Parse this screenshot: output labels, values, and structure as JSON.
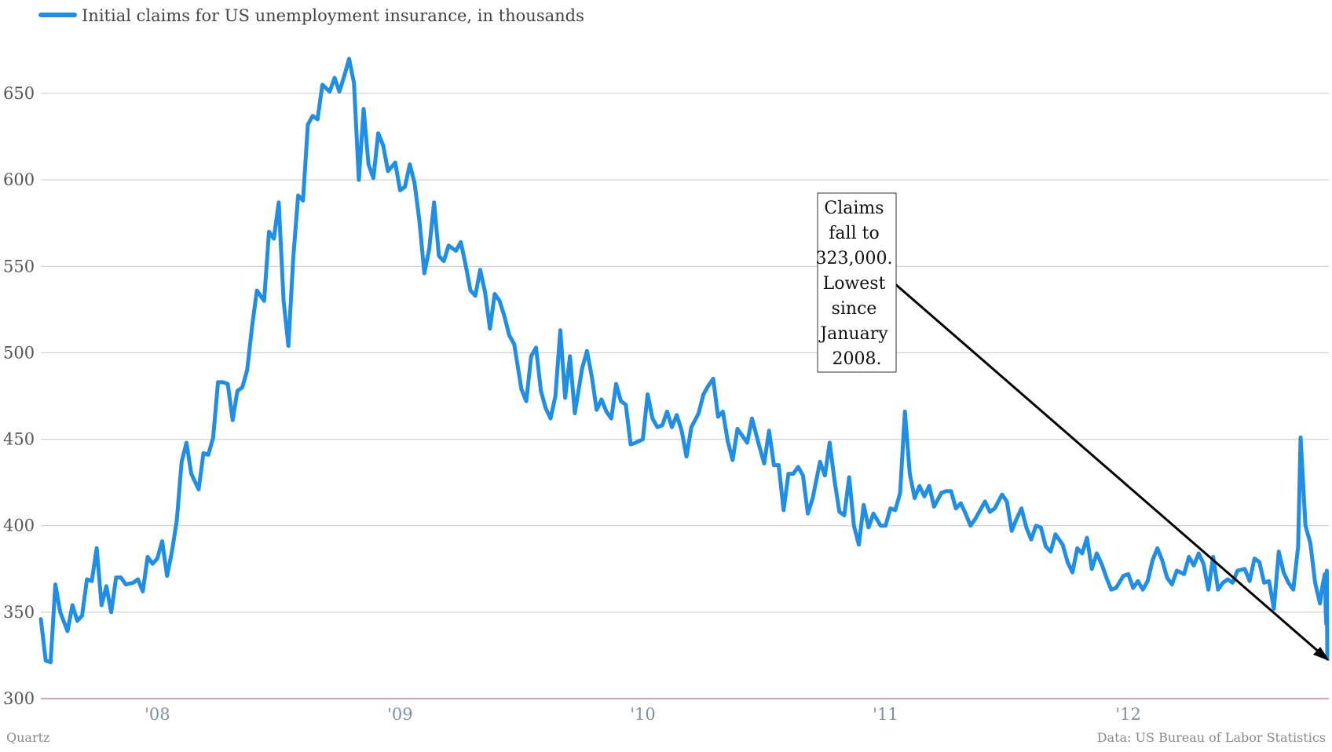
{
  "chart_data": {
    "type": "line",
    "legend_position": "top-left",
    "ylim": [
      300,
      675
    ],
    "yticks": [
      300,
      350,
      400,
      450,
      500,
      550,
      600,
      650
    ],
    "ytick_labels": [
      "300",
      "350",
      "400",
      "450",
      "500",
      "550",
      "600",
      "650"
    ],
    "xlim": [
      2007.52,
      2012.82
    ],
    "xticks": [
      2008,
      2009,
      2010,
      2011,
      2012
    ],
    "xtick_labels": [
      "'08",
      "'09",
      "'10",
      "'11",
      "'12"
    ],
    "grid": true,
    "colors": {
      "series": "#1f8ee6",
      "grid": "#c8c8c8",
      "baseline": "#d678b0",
      "arrow": "#000000"
    },
    "series": [
      {
        "name": "Initial claims for US unemployment insurance, in thousands",
        "points": [
          [
            2007.52,
            346
          ],
          [
            2007.54,
            322
          ],
          [
            2007.56,
            321
          ],
          [
            2007.58,
            366
          ],
          [
            2007.6,
            350
          ],
          [
            2007.63,
            339
          ],
          [
            2007.65,
            354
          ],
          [
            2007.67,
            345
          ],
          [
            2007.69,
            348
          ],
          [
            2007.71,
            369
          ],
          [
            2007.73,
            368
          ],
          [
            2007.75,
            387
          ],
          [
            2007.77,
            354
          ],
          [
            2007.79,
            365
          ],
          [
            2007.81,
            350
          ],
          [
            2007.83,
            370
          ],
          [
            2007.85,
            370
          ],
          [
            2007.87,
            366
          ],
          [
            2007.9,
            367
          ],
          [
            2007.92,
            369
          ],
          [
            2007.94,
            362
          ],
          [
            2007.96,
            382
          ],
          [
            2007.98,
            378
          ],
          [
            2008.0,
            381
          ],
          [
            2008.02,
            391
          ],
          [
            2008.04,
            371
          ],
          [
            2008.06,
            385
          ],
          [
            2008.08,
            403
          ],
          [
            2008.1,
            437
          ],
          [
            2008.12,
            448
          ],
          [
            2008.14,
            430
          ],
          [
            2008.17,
            421
          ],
          [
            2008.19,
            442
          ],
          [
            2008.21,
            441
          ],
          [
            2008.23,
            451
          ],
          [
            2008.25,
            483
          ],
          [
            2008.27,
            483
          ],
          [
            2008.29,
            482
          ],
          [
            2008.31,
            461
          ],
          [
            2008.33,
            478
          ],
          [
            2008.35,
            480
          ],
          [
            2008.37,
            490
          ],
          [
            2008.39,
            515
          ],
          [
            2008.41,
            536
          ],
          [
            2008.44,
            530
          ],
          [
            2008.46,
            570
          ],
          [
            2008.48,
            566
          ],
          [
            2008.5,
            587
          ],
          [
            2008.52,
            530
          ],
          [
            2008.54,
            504
          ],
          [
            2008.56,
            555
          ],
          [
            2008.58,
            591
          ],
          [
            2008.6,
            588
          ],
          [
            2008.62,
            632
          ],
          [
            2008.64,
            637
          ],
          [
            2008.66,
            635
          ],
          [
            2008.68,
            655
          ],
          [
            2008.71,
            651
          ],
          [
            2008.73,
            659
          ],
          [
            2008.75,
            651
          ],
          [
            2008.77,
            660
          ],
          [
            2008.79,
            670
          ],
          [
            2008.81,
            656
          ],
          [
            2008.83,
            600
          ],
          [
            2008.85,
            641
          ],
          [
            2008.87,
            609
          ],
          [
            2008.89,
            601
          ],
          [
            2008.91,
            627
          ],
          [
            2008.93,
            620
          ],
          [
            2008.95,
            605
          ],
          [
            2008.98,
            610
          ],
          [
            2009.0,
            594
          ],
          [
            2009.02,
            596
          ],
          [
            2009.04,
            609
          ],
          [
            2009.06,
            598
          ],
          [
            2009.08,
            576
          ],
          [
            2009.1,
            546
          ],
          [
            2009.12,
            560
          ],
          [
            2009.14,
            587
          ],
          [
            2009.16,
            556
          ],
          [
            2009.18,
            553
          ],
          [
            2009.2,
            562
          ],
          [
            2009.23,
            559
          ],
          [
            2009.25,
            564
          ],
          [
            2009.27,
            551
          ],
          [
            2009.29,
            536
          ],
          [
            2009.31,
            533
          ],
          [
            2009.33,
            548
          ],
          [
            2009.35,
            535
          ],
          [
            2009.37,
            514
          ],
          [
            2009.39,
            534
          ],
          [
            2009.41,
            530
          ],
          [
            2009.43,
            521
          ],
          [
            2009.45,
            510
          ],
          [
            2009.47,
            505
          ],
          [
            2009.5,
            479
          ],
          [
            2009.52,
            472
          ],
          [
            2009.54,
            498
          ],
          [
            2009.56,
            503
          ],
          [
            2009.58,
            478
          ],
          [
            2009.6,
            468
          ],
          [
            2009.62,
            462
          ],
          [
            2009.64,
            475
          ],
          [
            2009.66,
            513
          ],
          [
            2009.68,
            474
          ],
          [
            2009.7,
            498
          ],
          [
            2009.72,
            465
          ],
          [
            2009.75,
            491
          ],
          [
            2009.77,
            501
          ],
          [
            2009.79,
            486
          ],
          [
            2009.81,
            467
          ],
          [
            2009.83,
            473
          ],
          [
            2009.85,
            466
          ],
          [
            2009.87,
            462
          ],
          [
            2009.89,
            482
          ],
          [
            2009.91,
            472
          ],
          [
            2009.93,
            470
          ],
          [
            2009.95,
            447
          ],
          [
            2009.97,
            448
          ],
          [
            2010.0,
            450
          ],
          [
            2010.02,
            476
          ],
          [
            2010.04,
            462
          ],
          [
            2010.06,
            457
          ],
          [
            2010.08,
            458
          ],
          [
            2010.1,
            466
          ],
          [
            2010.12,
            457
          ],
          [
            2010.14,
            464
          ],
          [
            2010.16,
            455
          ],
          [
            2010.18,
            440
          ],
          [
            2010.2,
            457
          ],
          [
            2010.23,
            465
          ],
          [
            2010.25,
            476
          ],
          [
            2010.27,
            481
          ],
          [
            2010.29,
            485
          ],
          [
            2010.31,
            463
          ],
          [
            2010.33,
            466
          ],
          [
            2010.35,
            449
          ],
          [
            2010.37,
            438
          ],
          [
            2010.39,
            456
          ],
          [
            2010.41,
            452
          ],
          [
            2010.43,
            448
          ],
          [
            2010.45,
            462
          ],
          [
            2010.48,
            446
          ],
          [
            2010.5,
            436
          ],
          [
            2010.52,
            455
          ],
          [
            2010.54,
            435
          ],
          [
            2010.56,
            435
          ],
          [
            2010.58,
            409
          ],
          [
            2010.6,
            430
          ],
          [
            2010.62,
            430
          ],
          [
            2010.64,
            434
          ],
          [
            2010.66,
            429
          ],
          [
            2010.68,
            407
          ],
          [
            2010.7,
            416
          ],
          [
            2010.73,
            437
          ],
          [
            2010.75,
            429
          ],
          [
            2010.77,
            448
          ],
          [
            2010.79,
            426
          ],
          [
            2010.81,
            408
          ],
          [
            2010.83,
            406
          ],
          [
            2010.85,
            428
          ],
          [
            2010.87,
            400
          ],
          [
            2010.89,
            389
          ],
          [
            2010.91,
            412
          ],
          [
            2010.93,
            399
          ],
          [
            2010.95,
            407
          ],
          [
            2010.98,
            400
          ],
          [
            2011.0,
            400
          ],
          [
            2011.02,
            410
          ],
          [
            2011.04,
            409
          ],
          [
            2011.06,
            419
          ],
          [
            2011.08,
            466
          ],
          [
            2011.1,
            430
          ],
          [
            2011.12,
            416
          ],
          [
            2011.14,
            423
          ],
          [
            2011.16,
            417
          ],
          [
            2011.18,
            423
          ],
          [
            2011.2,
            411
          ],
          [
            2011.23,
            419
          ],
          [
            2011.25,
            420
          ],
          [
            2011.27,
            420
          ],
          [
            2011.29,
            410
          ],
          [
            2011.31,
            413
          ],
          [
            2011.33,
            407
          ],
          [
            2011.35,
            400
          ],
          [
            2011.37,
            404
          ],
          [
            2011.39,
            409
          ],
          [
            2011.41,
            414
          ],
          [
            2011.43,
            408
          ],
          [
            2011.45,
            410
          ],
          [
            2011.48,
            418
          ],
          [
            2011.5,
            414
          ],
          [
            2011.52,
            397
          ],
          [
            2011.54,
            404
          ],
          [
            2011.56,
            410
          ],
          [
            2011.58,
            399
          ],
          [
            2011.6,
            392
          ],
          [
            2011.62,
            400
          ],
          [
            2011.64,
            399
          ],
          [
            2011.66,
            388
          ],
          [
            2011.68,
            385
          ],
          [
            2011.7,
            395
          ],
          [
            2011.73,
            389
          ],
          [
            2011.75,
            379
          ],
          [
            2011.77,
            373
          ],
          [
            2011.79,
            387
          ],
          [
            2011.81,
            384
          ],
          [
            2011.83,
            393
          ],
          [
            2011.85,
            375
          ],
          [
            2011.87,
            384
          ],
          [
            2011.89,
            378
          ],
          [
            2011.91,
            370
          ],
          [
            2011.93,
            363
          ],
          [
            2011.95,
            364
          ],
          [
            2011.98,
            371
          ],
          [
            2012.0,
            372
          ],
          [
            2012.02,
            364
          ],
          [
            2012.04,
            368
          ],
          [
            2012.06,
            363
          ],
          [
            2012.08,
            368
          ],
          [
            2012.1,
            380
          ],
          [
            2012.12,
            387
          ],
          [
            2012.14,
            380
          ],
          [
            2012.16,
            370
          ],
          [
            2012.18,
            366
          ],
          [
            2012.2,
            374
          ],
          [
            2012.23,
            372
          ],
          [
            2012.25,
            382
          ],
          [
            2012.27,
            377
          ],
          [
            2012.29,
            384
          ],
          [
            2012.31,
            378
          ],
          [
            2012.33,
            363
          ],
          [
            2012.35,
            382
          ],
          [
            2012.37,
            363
          ],
          [
            2012.39,
            367
          ],
          [
            2012.41,
            369
          ],
          [
            2012.43,
            367
          ],
          [
            2012.45,
            374
          ],
          [
            2012.48,
            375
          ],
          [
            2012.5,
            368
          ],
          [
            2012.52,
            381
          ],
          [
            2012.54,
            379
          ],
          [
            2012.56,
            367
          ],
          [
            2012.58,
            368
          ],
          [
            2012.6,
            352
          ],
          [
            2012.62,
            385
          ],
          [
            2012.64,
            373
          ],
          [
            2012.66,
            367
          ],
          [
            2012.68,
            363
          ],
          [
            2012.7,
            388
          ],
          [
            2012.71,
            451
          ],
          [
            2012.73,
            400
          ],
          [
            2012.75,
            390
          ],
          [
            2012.77,
            367
          ],
          [
            2012.79,
            355
          ],
          [
            2012.8,
            365
          ],
          [
            2012.81,
            372
          ],
          [
            2012.812,
            362
          ],
          [
            2012.814,
            350
          ],
          [
            2012.816,
            343
          ],
          [
            2012.818,
            374
          ],
          [
            2012.82,
            323
          ]
        ]
      }
    ],
    "annotation": {
      "lines": [
        "Claims",
        "fall to",
        "323,000.",
        "Lowest",
        "since",
        "January",
        "2008."
      ]
    }
  },
  "footer": {
    "left": "Quartz",
    "right": "Data: US Bureau of Labor Statistics"
  }
}
